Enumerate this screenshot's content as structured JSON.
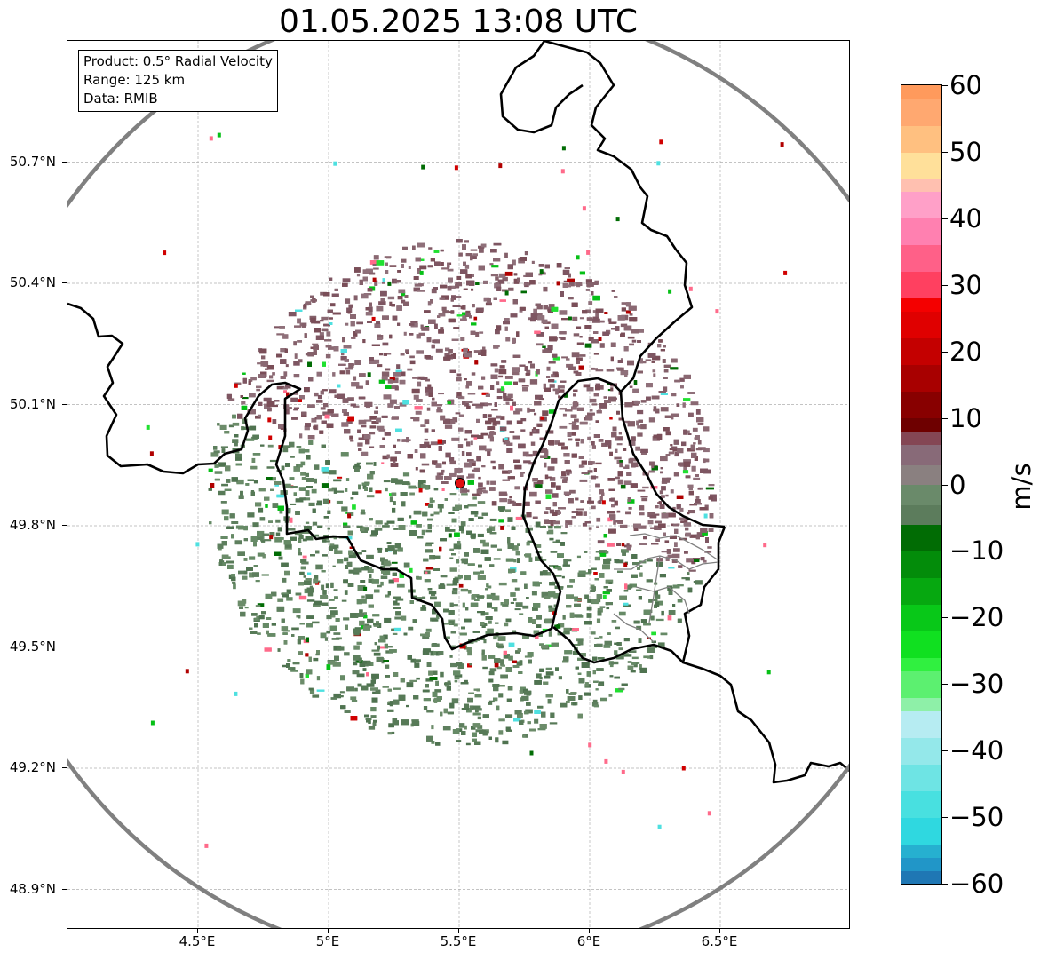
{
  "title": "01.05.2025 13:08 UTC",
  "info_box": {
    "product": "Product: 0.5° Radial Velocity",
    "range": "Range: 125 km",
    "data": "Data: RMIB"
  },
  "map": {
    "extent": {
      "lon": [
        4.0,
        7.0
      ],
      "lat": [
        48.8,
        51.0
      ]
    },
    "radar_site": {
      "lon": 5.505,
      "lat": 49.915
    },
    "x_ticks": [
      {
        "lon": 4.5,
        "label": "4.5°E"
      },
      {
        "lon": 5.0,
        "label": "5°E"
      },
      {
        "lon": 5.5,
        "label": "5.5°E"
      },
      {
        "lon": 6.0,
        "label": "6°E"
      },
      {
        "lon": 6.5,
        "label": "6.5°E"
      }
    ],
    "y_ticks": [
      {
        "lat": 50.7,
        "label": "50.7°N"
      },
      {
        "lat": 50.4,
        "label": "50.4°N"
      },
      {
        "lat": 50.1,
        "label": "50.1°N"
      },
      {
        "lat": 49.8,
        "label": "49.8°N"
      },
      {
        "lat": 49.5,
        "label": "49.5°N"
      },
      {
        "lat": 49.2,
        "label": "49.2°N"
      },
      {
        "lat": 48.9,
        "label": "48.9°N"
      }
    ],
    "colors": {
      "range_ring": "#808080",
      "border": "#000000",
      "sub_border": "#808080",
      "radar_marker": "#e01010",
      "approaching": "#5e7f5e",
      "receding": "#84606a"
    }
  },
  "colorbar": {
    "label": "m/s",
    "min": -60,
    "max": 60,
    "ticks": [
      {
        "value": 60,
        "label": "60"
      },
      {
        "value": 50,
        "label": "50"
      },
      {
        "value": 40,
        "label": "40"
      },
      {
        "value": 30,
        "label": "30"
      },
      {
        "value": 20,
        "label": "20"
      },
      {
        "value": 10,
        "label": "10"
      },
      {
        "value": 0,
        "label": "0"
      },
      {
        "value": -10,
        "label": "−10"
      },
      {
        "value": -20,
        "label": "−20"
      },
      {
        "value": -30,
        "label": "−30"
      },
      {
        "value": -40,
        "label": "−40"
      },
      {
        "value": -50,
        "label": "−50"
      },
      {
        "value": -60,
        "label": "−60"
      }
    ],
    "bands": [
      {
        "from": -60,
        "to": -58,
        "color": "#1f77b4"
      },
      {
        "from": -58,
        "to": -56,
        "color": "#2196c8"
      },
      {
        "from": -56,
        "to": -54,
        "color": "#26b0d0"
      },
      {
        "from": -54,
        "to": -50,
        "color": "#2fd8e0"
      },
      {
        "from": -50,
        "to": -46,
        "color": "#48e0e0"
      },
      {
        "from": -46,
        "to": -42,
        "color": "#6ee4e4"
      },
      {
        "from": -42,
        "to": -38,
        "color": "#94e8ea"
      },
      {
        "from": -38,
        "to": -34,
        "color": "#b6ecf2"
      },
      {
        "from": -34,
        "to": -32,
        "color": "#8ef0a8"
      },
      {
        "from": -32,
        "to": -28,
        "color": "#5cf070"
      },
      {
        "from": -28,
        "to": -26,
        "color": "#30f040"
      },
      {
        "from": -26,
        "to": -22,
        "color": "#10e020"
      },
      {
        "from": -22,
        "to": -18,
        "color": "#08c818"
      },
      {
        "from": -18,
        "to": -14,
        "color": "#06a810"
      },
      {
        "from": -14,
        "to": -10,
        "color": "#038c0a"
      },
      {
        "from": -10,
        "to": -6,
        "color": "#016c04"
      },
      {
        "from": -6,
        "to": -3,
        "color": "#5c7c5c"
      },
      {
        "from": -3,
        "to": 0,
        "color": "#6a8a6a"
      },
      {
        "from": 0,
        "to": 3,
        "color": "#8a8080"
      },
      {
        "from": 3,
        "to": 6,
        "color": "#886a78"
      },
      {
        "from": 6,
        "to": 8,
        "color": "#844654"
      },
      {
        "from": 8,
        "to": 10,
        "color": "#6e0000"
      },
      {
        "from": 10,
        "to": 14,
        "color": "#880000"
      },
      {
        "from": 14,
        "to": 18,
        "color": "#a80000"
      },
      {
        "from": 18,
        "to": 22,
        "color": "#c40000"
      },
      {
        "from": 22,
        "to": 26,
        "color": "#e00000"
      },
      {
        "from": 26,
        "to": 28,
        "color": "#f40000"
      },
      {
        "from": 28,
        "to": 32,
        "color": "#ff4060"
      },
      {
        "from": 32,
        "to": 36,
        "color": "#ff6088"
      },
      {
        "from": 36,
        "to": 40,
        "color": "#ff80b0"
      },
      {
        "from": 40,
        "to": 44,
        "color": "#ffa0c8"
      },
      {
        "from": 44,
        "to": 46,
        "color": "#ffc0b0"
      },
      {
        "from": 46,
        "to": 50,
        "color": "#ffe09a"
      },
      {
        "from": 50,
        "to": 54,
        "color": "#ffc080"
      },
      {
        "from": 54,
        "to": 58,
        "color": "#ffa870"
      },
      {
        "from": 58,
        "to": 60,
        "color": "#ff9a5c"
      }
    ]
  }
}
